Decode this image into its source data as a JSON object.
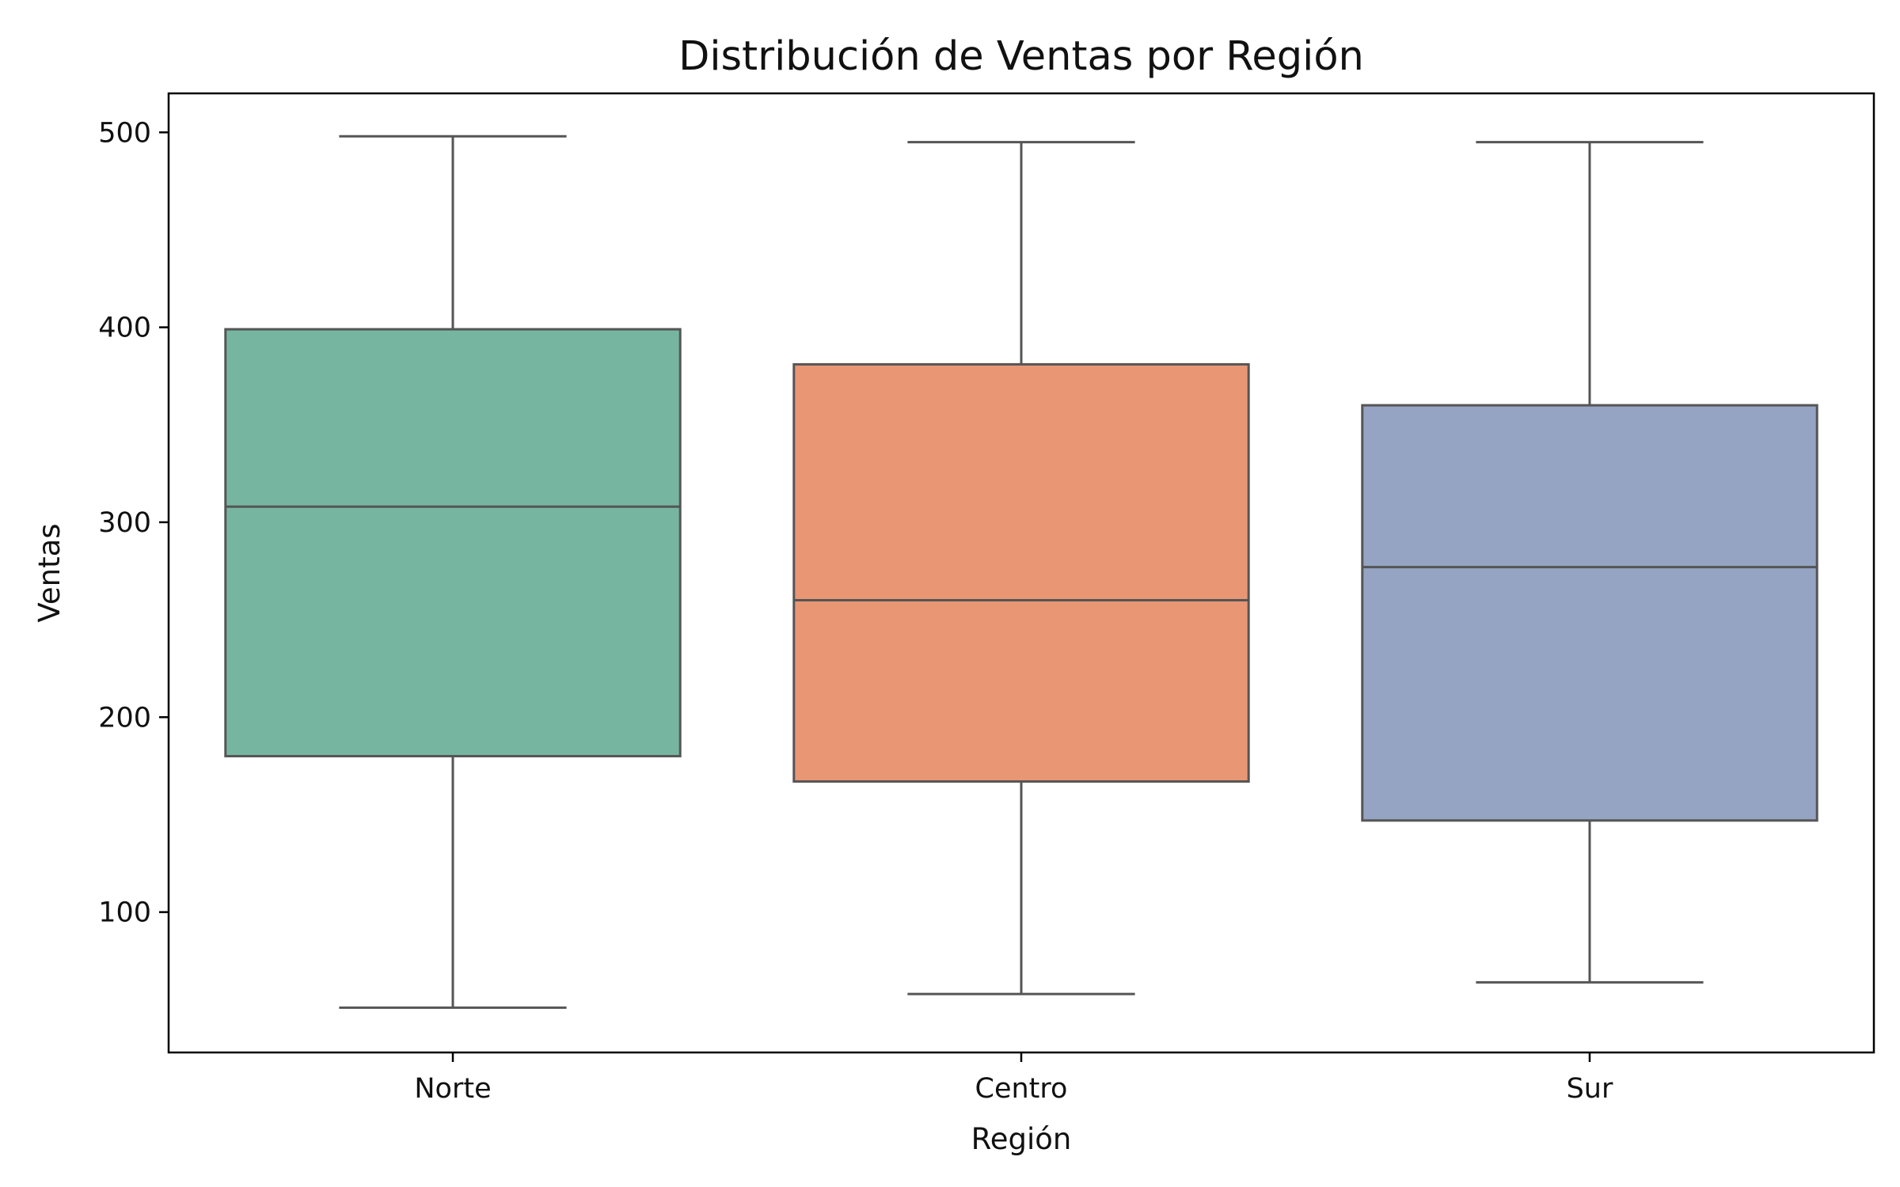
{
  "chart_data": {
    "type": "boxplot",
    "title": "Distribución de Ventas por Región",
    "xlabel": "Región",
    "ylabel": "Ventas",
    "ylim": [
      28,
      520
    ],
    "yticks": [
      100,
      200,
      300,
      400,
      500
    ],
    "grid": false,
    "categories": [
      "Norte",
      "Centro",
      "Sur"
    ],
    "series": [
      {
        "category": "Norte",
        "whisker_low": 51,
        "q1": 180,
        "median": 308,
        "q3": 399,
        "whisker_high": 498,
        "color": "#76b6a1"
      },
      {
        "category": "Centro",
        "whisker_low": 58,
        "q1": 167,
        "median": 260,
        "q3": 381,
        "whisker_high": 495,
        "color": "#e99675"
      },
      {
        "category": "Sur",
        "whisker_low": 64,
        "q1": 147,
        "median": 277,
        "q3": 360,
        "whisker_high": 495,
        "color": "#95a4c3"
      }
    ],
    "style": {
      "box_edge": "#555555",
      "axes": "#000000"
    }
  }
}
